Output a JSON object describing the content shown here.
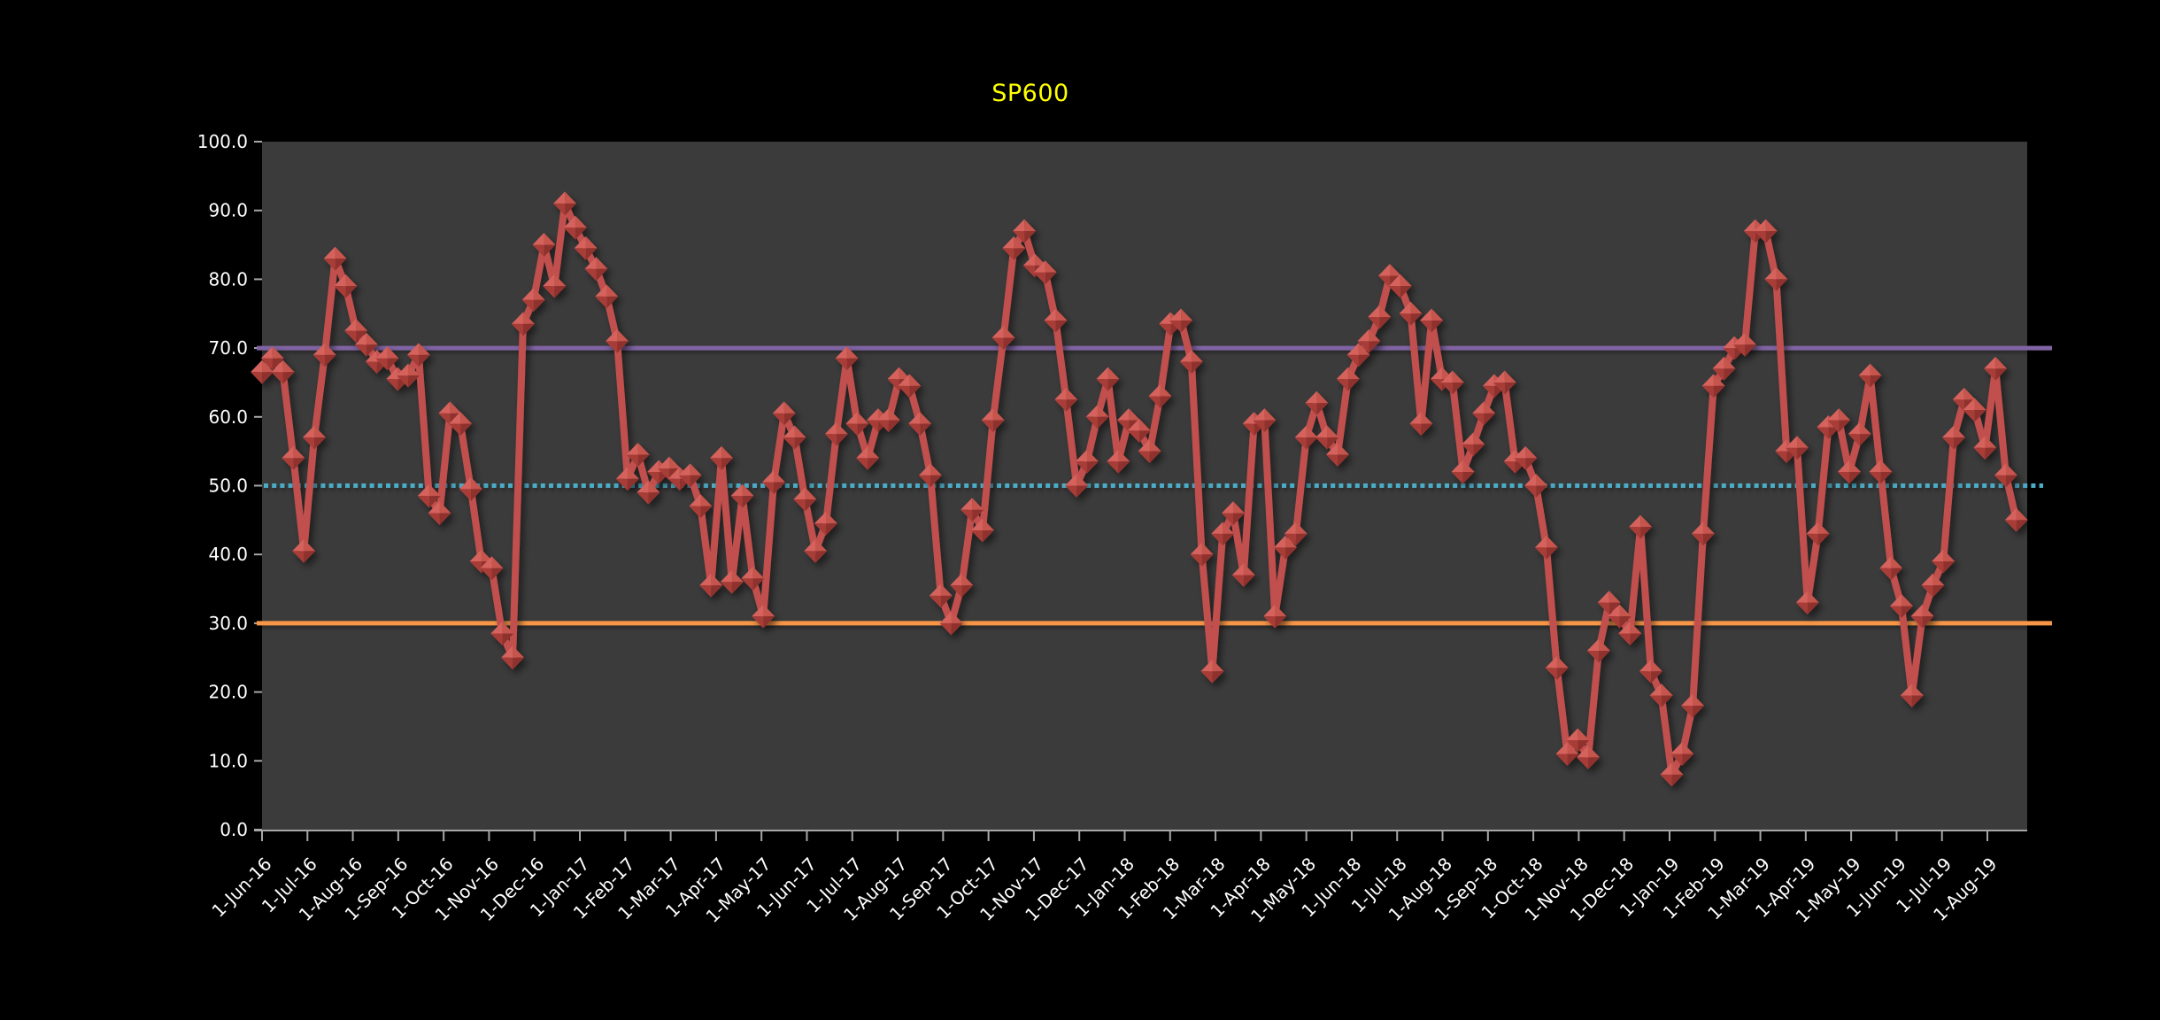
{
  "chart_data": {
    "type": "line",
    "title": "SP600",
    "title_color": "#ffff00",
    "xlabel": "",
    "ylabel": "",
    "ylim": [
      0,
      100
    ],
    "y_tick_step": 10,
    "y_tick_labels": [
      "0.0",
      "10.0",
      "20.0",
      "30.0",
      "40.0",
      "50.0",
      "60.0",
      "70.0",
      "80.0",
      "90.0",
      "100.0"
    ],
    "x_tick_labels": [
      "1-Jun-16",
      "1-Jul-16",
      "1-Aug-16",
      "1-Sep-16",
      "1-Oct-16",
      "1-Nov-16",
      "1-Dec-16",
      "1-Jan-17",
      "1-Feb-17",
      "1-Mar-17",
      "1-Apr-17",
      "1-May-17",
      "1-Jun-17",
      "1-Jul-17",
      "1-Aug-17",
      "1-Sep-17",
      "1-Oct-17",
      "1-Nov-17",
      "1-Dec-17",
      "1-Jan-18",
      "1-Feb-18",
      "1-Mar-18",
      "1-Apr-18",
      "1-May-18",
      "1-Jun-18",
      "1-Jul-18",
      "1-Aug-18",
      "1-Sep-18",
      "1-Oct-18",
      "1-Nov-18",
      "1-Dec-18",
      "1-Jan-19",
      "1-Feb-19",
      "1-Mar-19",
      "1-Apr-19",
      "1-May-19",
      "1-Jun-19",
      "1-Jul-19",
      "1-Aug-19"
    ],
    "x_start": "1-Jun-16",
    "x_frequency": "weekly",
    "grid": "off",
    "legend": "none",
    "series": [
      {
        "name": "SP600",
        "color": "#c0504d",
        "marker": "diamond-3d-bevel",
        "values": [
          66.5,
          68.5,
          66.5,
          54,
          40.5,
          57,
          69,
          83,
          79,
          72.5,
          70.5,
          68,
          68.5,
          65.5,
          66,
          69,
          48.5,
          46,
          60.5,
          59,
          49.5,
          39,
          38,
          28.5,
          25,
          73.5,
          77,
          85,
          79,
          91,
          87.5,
          84.5,
          81.5,
          77.5,
          71,
          51,
          54.5,
          49,
          52,
          52.5,
          51,
          51.5,
          47,
          35.5,
          54,
          36,
          48.5,
          36.5,
          31,
          50.5,
          60.5,
          57,
          48,
          40.5,
          44.5,
          57.5,
          68.5,
          59,
          54,
          59.5,
          59.5,
          65.5,
          64.5,
          59,
          51.5,
          34,
          30,
          35.5,
          46.5,
          43.5,
          59.5,
          71.5,
          84.5,
          87,
          82,
          81,
          74,
          62.5,
          50,
          53.5,
          60,
          65.5,
          53.5,
          59.5,
          58,
          55,
          63,
          73.5,
          74,
          68,
          40,
          23,
          43,
          46,
          37,
          59,
          59.5,
          31,
          41,
          43,
          57,
          62,
          57,
          54.5,
          65.5,
          69,
          71,
          74.5,
          80.5,
          79,
          75,
          59,
          74,
          65.5,
          65,
          52,
          56,
          60.5,
          64.5,
          65,
          53.5,
          54,
          50,
          41,
          23.5,
          11,
          13,
          10.5,
          26,
          33,
          31,
          28.5,
          44,
          23,
          19.5,
          8,
          11,
          18,
          43,
          64.5,
          67,
          70,
          70.5,
          87,
          87,
          80,
          55,
          55.5,
          33,
          43,
          58.5,
          59.5,
          52,
          57.5,
          66,
          52,
          38,
          32.5,
          19.5,
          31,
          35.5,
          39,
          57,
          62.5,
          61,
          55.5,
          67,
          51.5,
          45
        ]
      }
    ],
    "reference_lines": [
      {
        "name": "upper-threshold",
        "value": 70,
        "color": "#8064a2",
        "style": "solid"
      },
      {
        "name": "mid-threshold",
        "value": 50,
        "color": "#4bacc6",
        "style": "dashed"
      },
      {
        "name": "lower-threshold",
        "value": 30,
        "color": "#f79646",
        "style": "solid"
      }
    ],
    "colors": {
      "background": "#000000",
      "plot_background": "#3b3b3b",
      "axis_text": "#ffffff",
      "axis_line": "#a6a6a6",
      "marker_facets": {
        "top_left": "#d5625d",
        "top_right": "#c5544e",
        "bottom_left": "#a83d39",
        "bottom_right": "#8f312e"
      }
    }
  }
}
